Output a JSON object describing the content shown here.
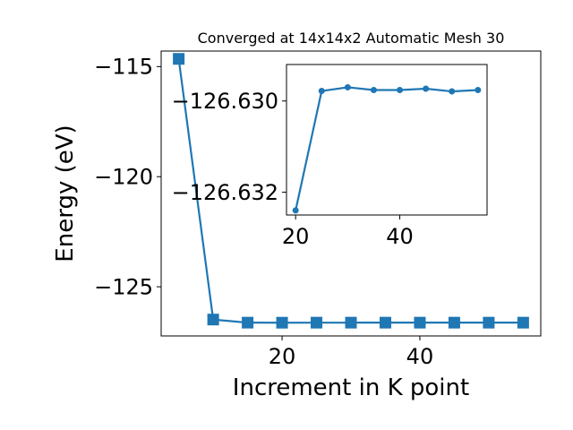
{
  "chart_data": [
    {
      "type": "line",
      "title": "Converged at 14x14x2 Automatic Mesh 30",
      "xlabel": "Increment in K point",
      "ylabel": "Energy (eV)",
      "xlim": [
        2.45,
        57.55
      ],
      "ylim": [
        -127.234,
        -114.294
      ],
      "x_ticks": [
        20,
        40
      ],
      "y_ticks": [
        -115,
        -120,
        -125
      ],
      "x_tick_labels": [
        "20",
        "40"
      ],
      "y_tick_labels": [
        "−115",
        "−120",
        "−125"
      ],
      "grid": false,
      "series": [
        {
          "marker": "square",
          "color": "#1f77b4",
          "x": [
            5,
            10,
            15,
            20,
            25,
            30,
            35,
            40,
            45,
            50,
            55
          ],
          "y": [
            -114.65,
            -126.49,
            -126.63,
            -126.6325,
            -126.6304,
            -126.6302,
            -126.6303,
            -126.6303,
            -126.6303,
            -126.6303,
            -126.6303
          ]
        }
      ]
    },
    {
      "type": "line",
      "title": "",
      "xlabel": "",
      "ylabel": "",
      "xlim": [
        18.25,
        56.75
      ],
      "ylim": [
        -126.6325,
        -126.6292
      ],
      "x_ticks": [
        20,
        40
      ],
      "y_ticks": [
        -126.632,
        -126.63
      ],
      "x_tick_labels": [
        "20",
        "40"
      ],
      "y_tick_labels": [
        "−126.632",
        "−126.630"
      ],
      "grid": false,
      "series": [
        {
          "marker": "circle",
          "color": "#1f77b4",
          "x": [
            20,
            25,
            30,
            35,
            40,
            45,
            50,
            55
          ],
          "y": [
            -126.6324,
            -126.62978,
            -126.6297,
            -126.62976,
            -126.62976,
            -126.62973,
            -126.62979,
            -126.62976
          ]
        }
      ]
    }
  ]
}
